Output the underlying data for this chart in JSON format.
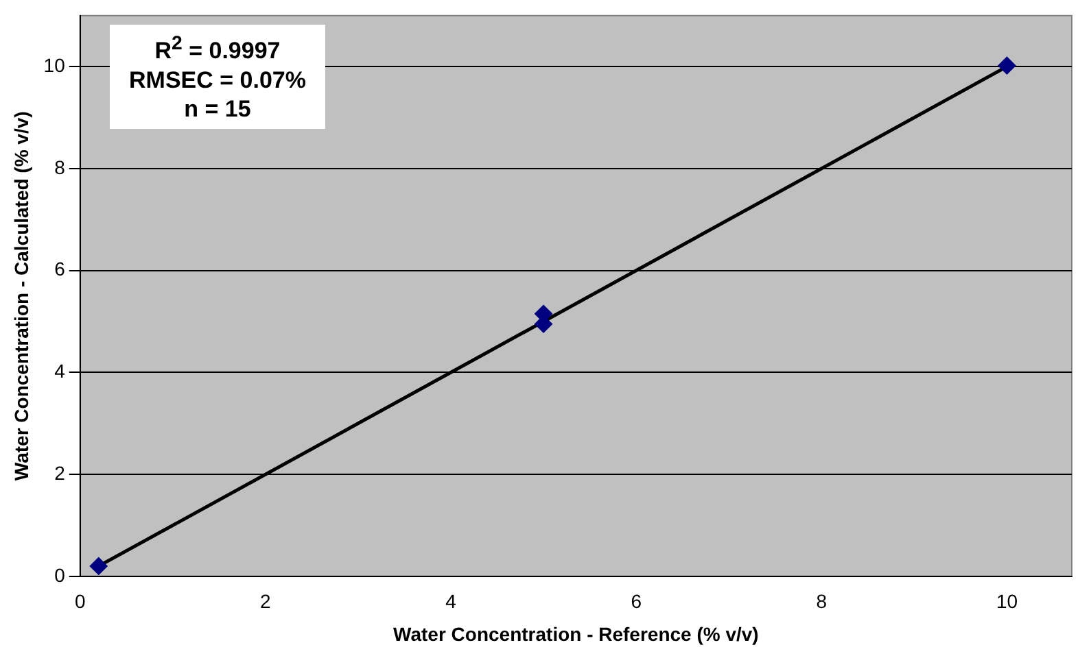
{
  "chart_data": {
    "type": "scatter",
    "xlabel": "Water Concentration - Reference (% v/v)",
    "ylabel": "Water Concentration - Calculated (% v/v)",
    "annotations": [
      "R$^{2}$ = 0.9997",
      "RMSEC = 0.07%",
      "n = 15"
    ],
    "series": [
      {
        "color": "#000080",
        "marker": "diamond",
        "x": [
          0.2,
          5,
          5,
          10
        ],
        "values": [
          0.2,
          4.95,
          5.15,
          10.02
        ]
      },
      {
        "type": "line",
        "color": "#000000",
        "marker": "none",
        "x": [
          0.2,
          10
        ],
        "values": [
          0.2,
          10
        ]
      }
    ],
    "xlim": [
      0,
      10.7
    ],
    "xticks": [
      0,
      2,
      4,
      6,
      8,
      10
    ],
    "ylim": [
      0,
      11
    ],
    "yticks": [
      0,
      2,
      4,
      6,
      8,
      10
    ],
    "grid": "y",
    "legend": false
  }
}
